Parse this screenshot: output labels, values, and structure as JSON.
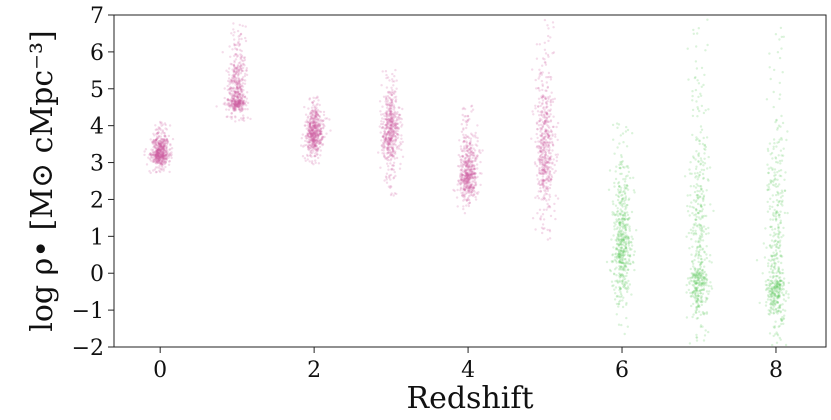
{
  "chart_data": {
    "type": "scatter",
    "title": "",
    "xlabel": "Redshift",
    "ylabel": "log ρ• [M⊙ cMpc⁻³]",
    "xlim": [
      -0.6,
      8.65
    ],
    "ylim": [
      -2,
      7
    ],
    "x_ticks": [
      0,
      2,
      4,
      6,
      8
    ],
    "x_tick_labels": [
      "0",
      "2",
      "4",
      "6",
      "8"
    ],
    "y_ticks": [
      -2,
      -1,
      0,
      1,
      2,
      3,
      4,
      5,
      6,
      7
    ],
    "y_tick_labels": [
      "−2",
      "−1",
      "0",
      "1",
      "2",
      "3",
      "4",
      "5",
      "6",
      "7"
    ],
    "grid": false,
    "legend": "none",
    "series": [
      {
        "color": "#cc5c9e",
        "distribution": "vertical point cloud per redshift",
        "points": [
          {
            "x": 0,
            "y_center": 3.25,
            "y_min": 2.7,
            "y_max": 4.1
          },
          {
            "x": 1,
            "y_center": 4.7,
            "y_min": 4.1,
            "y_max": 6.8
          },
          {
            "x": 2,
            "y_center": 3.8,
            "y_min": 2.9,
            "y_max": 4.8
          },
          {
            "x": 3,
            "y_center": 3.85,
            "y_min": 2.1,
            "y_max": 5.6
          },
          {
            "x": 4,
            "y_center": 2.7,
            "y_min": 1.6,
            "y_max": 4.6
          },
          {
            "x": 5,
            "y_center": 3.4,
            "y_min": 0.6,
            "y_max": 6.9
          }
        ]
      },
      {
        "color": "#5cc95c",
        "distribution": "vertical point cloud per redshift",
        "points": [
          {
            "x": 6,
            "y_center": 0.7,
            "y_min": -1.7,
            "y_max": 4.2
          },
          {
            "x": 7,
            "y_center": 0.0,
            "y_min": -2.0,
            "y_max": 6.9
          },
          {
            "x": 8,
            "y_center": -0.2,
            "y_min": -2.0,
            "y_max": 6.8
          }
        ]
      }
    ]
  }
}
